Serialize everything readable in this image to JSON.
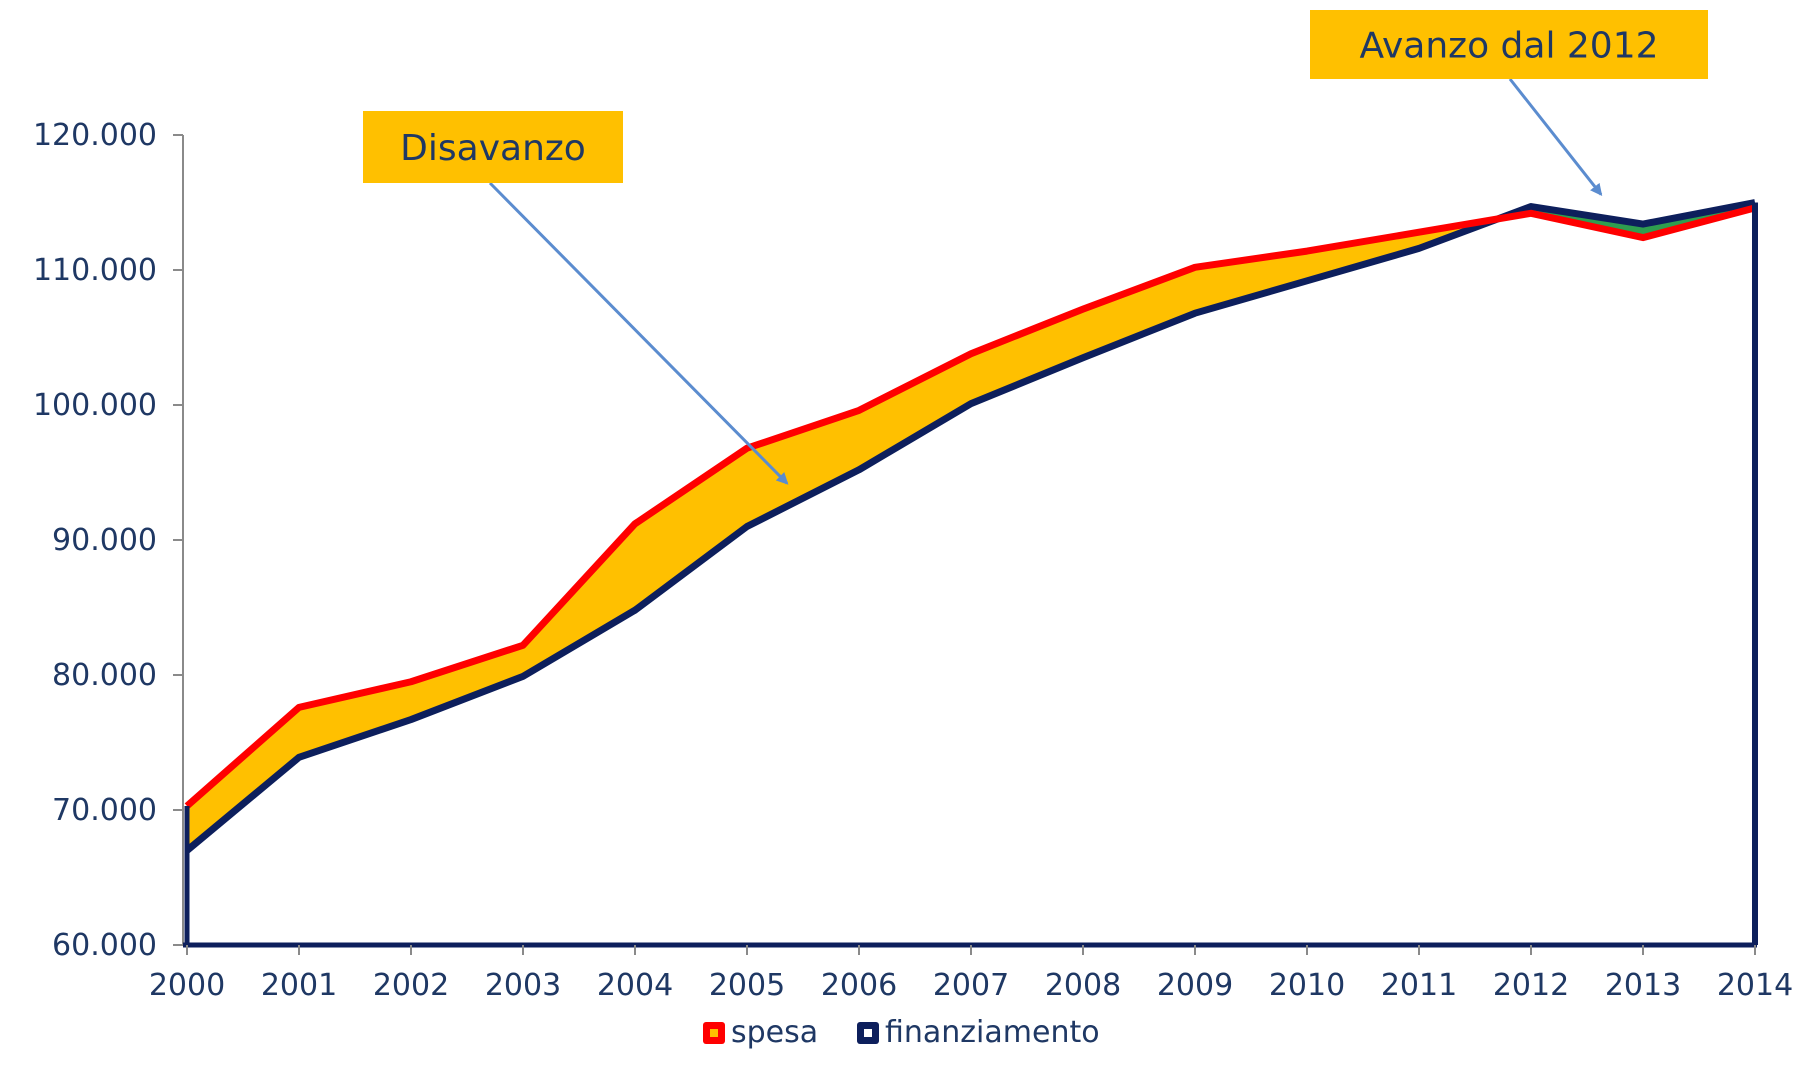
{
  "chart_data": {
    "type": "area",
    "title": "",
    "xlabel": "",
    "ylabel": "",
    "x": [
      "2000",
      "2001",
      "2002",
      "2003",
      "2004",
      "2005",
      "2006",
      "2007",
      "2008",
      "2009",
      "2010",
      "2011",
      "2012",
      "2013",
      "2014"
    ],
    "ylim": [
      60000,
      120000
    ],
    "yticks": [
      60000,
      70000,
      80000,
      90000,
      100000,
      110000,
      120000
    ],
    "ytick_labels": [
      "60.000",
      "70.000",
      "80.000",
      "90.000",
      "100.000",
      "110.000",
      "120.000"
    ],
    "series": [
      {
        "name": "spesa",
        "values": [
          70300,
          77600,
          79500,
          82200,
          91200,
          96800,
          99600,
          103800,
          107100,
          110200,
          111400,
          112800,
          114200,
          112400,
          114600
        ]
      },
      {
        "name": "finanziamento",
        "values": [
          67000,
          73900,
          76700,
          79900,
          84800,
          91000,
          95200,
          100100,
          103500,
          106800,
          109200,
          111600,
          114700,
          113400,
          115000
        ]
      }
    ],
    "grid": false,
    "legend_position": "bottom",
    "colors": {
      "spesa_line": "#ff0000",
      "finanziamento_line": "#0d1f5c",
      "deficit_fill": "#ffc000",
      "surplus_fill": "#2e9e4f",
      "legend_spesa_inner": "#ffc000",
      "legend_fin_inner": "#ffffff",
      "callout_bg": "#ffc000",
      "callout_arrow": "#5b8ccf",
      "axis": "#1f3864"
    },
    "annotations": [
      {
        "text": "Disavanzo",
        "target_x": "2005"
      },
      {
        "text": "Avanzo dal 2012",
        "target_x": "2013"
      }
    ]
  }
}
